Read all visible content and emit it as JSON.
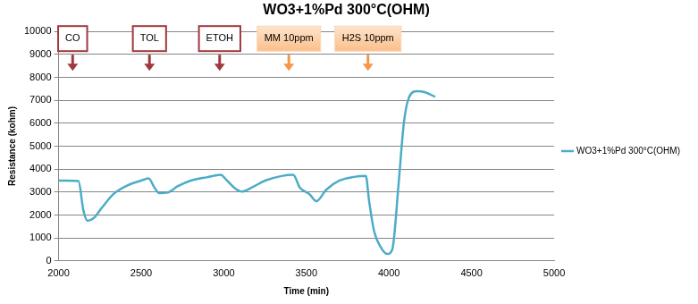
{
  "chart_data": {
    "type": "line",
    "title": "WO3+1%Pd 300°C(OHM)",
    "x_label": "Time (min)",
    "y_label": "Resistance (kohm)",
    "x": [
      2000,
      2050,
      2120,
      2150,
      2175,
      2210,
      2260,
      2330,
      2420,
      2500,
      2545,
      2580,
      2610,
      2660,
      2720,
      2800,
      2900,
      2980,
      3020,
      3070,
      3110,
      3170,
      3250,
      3350,
      3420,
      3460,
      3520,
      3560,
      3620,
      3700,
      3780,
      3860,
      3880,
      3910,
      3950,
      3990,
      4020,
      4060,
      4090,
      4120,
      4170,
      4220,
      4280
    ],
    "series": [
      {
        "name": "WO3+1%Pd 300°C(OHM)",
        "color": "#4bacc6",
        "values": [
          3500,
          3500,
          3480,
          2200,
          1750,
          1850,
          2300,
          2900,
          3300,
          3500,
          3600,
          3200,
          2950,
          2980,
          3250,
          3500,
          3650,
          3750,
          3500,
          3150,
          3020,
          3200,
          3500,
          3700,
          3750,
          3200,
          2900,
          2600,
          3100,
          3500,
          3650,
          3700,
          2600,
          1300,
          600,
          300,
          500,
          3500,
          6000,
          7100,
          7400,
          7350,
          7150
        ]
      }
    ],
    "xlim": [
      2000,
      5000
    ],
    "xticks": [
      2000,
      2500,
      3000,
      3500,
      4000,
      4500,
      5000
    ],
    "ylim": [
      0,
      10000
    ],
    "yticks": [
      0,
      1000,
      2000,
      3000,
      4000,
      5000,
      6000,
      7000,
      8000,
      9000,
      10000
    ],
    "grid": true,
    "legend": "right",
    "annotations": [
      {
        "text": "CO",
        "x": 2085,
        "color": "#a0393e",
        "marker": "box"
      },
      {
        "text": "TOL",
        "x": 2550,
        "color": "#a0393e",
        "marker": "box"
      },
      {
        "text": "ETOH",
        "x": 2975,
        "color": "#a0393e",
        "marker": "box"
      },
      {
        "text": "MM 10ppm",
        "x": 3394,
        "color": "#f79646",
        "marker": "filled_box"
      },
      {
        "text": "H2S 10ppm",
        "x": 3873,
        "color": "#f79646",
        "marker": "filled_box"
      }
    ]
  }
}
